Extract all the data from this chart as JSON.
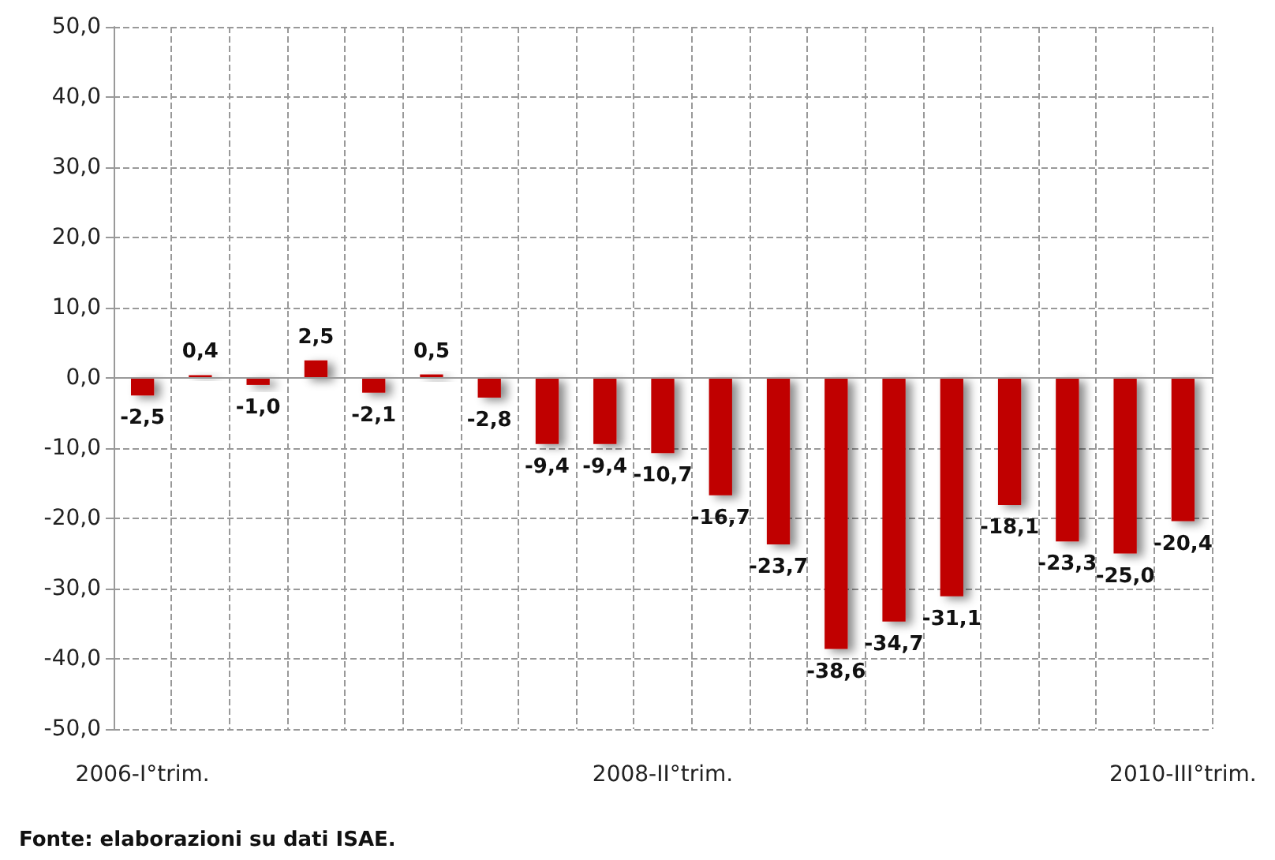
{
  "chart_data": {
    "type": "bar",
    "categories": [
      "2006-I°trim.",
      null,
      null,
      null,
      null,
      null,
      null,
      null,
      null,
      "2008-II°trim.",
      null,
      null,
      null,
      null,
      null,
      null,
      null,
      null,
      "2010-III°trim."
    ],
    "values": [
      -2.5,
      0.4,
      -1.0,
      2.5,
      -2.1,
      0.5,
      -2.8,
      -9.4,
      -9.4,
      -10.7,
      -16.7,
      -23.7,
      -38.6,
      -34.7,
      -31.1,
      -18.1,
      -23.3,
      -25.0,
      -20.4
    ],
    "value_labels": [
      "-2,5",
      "0,4",
      "-1,0",
      "2,5",
      "-2,1",
      "0,5",
      "-2,8",
      "-9,4",
      "-9,4",
      "-10,7",
      "-16,7",
      "-23,7",
      "-38,6",
      "-34,7",
      "-31,1",
      "-18,1",
      "-23,3",
      "-25,0",
      "-20,4"
    ],
    "color": "#c00000",
    "ylim": [
      -50,
      50
    ],
    "yticks": [
      {
        "value": -50,
        "label": "-50,0"
      },
      {
        "value": -40,
        "label": "-40,0"
      },
      {
        "value": -30,
        "label": "-30,0"
      },
      {
        "value": -20,
        "label": "-20,0"
      },
      {
        "value": -10,
        "label": "-10,0"
      },
      {
        "value": 0,
        "label": "0,0"
      },
      {
        "value": 10,
        "label": "10,0"
      },
      {
        "value": 20,
        "label": "20,0"
      },
      {
        "value": 30,
        "label": "30,0"
      },
      {
        "value": 40,
        "label": "40,0"
      },
      {
        "value": 50,
        "label": "50,0"
      }
    ],
    "grid": true,
    "annotations": [
      "Fonte: elaborazioni su dati ISAE."
    ]
  }
}
